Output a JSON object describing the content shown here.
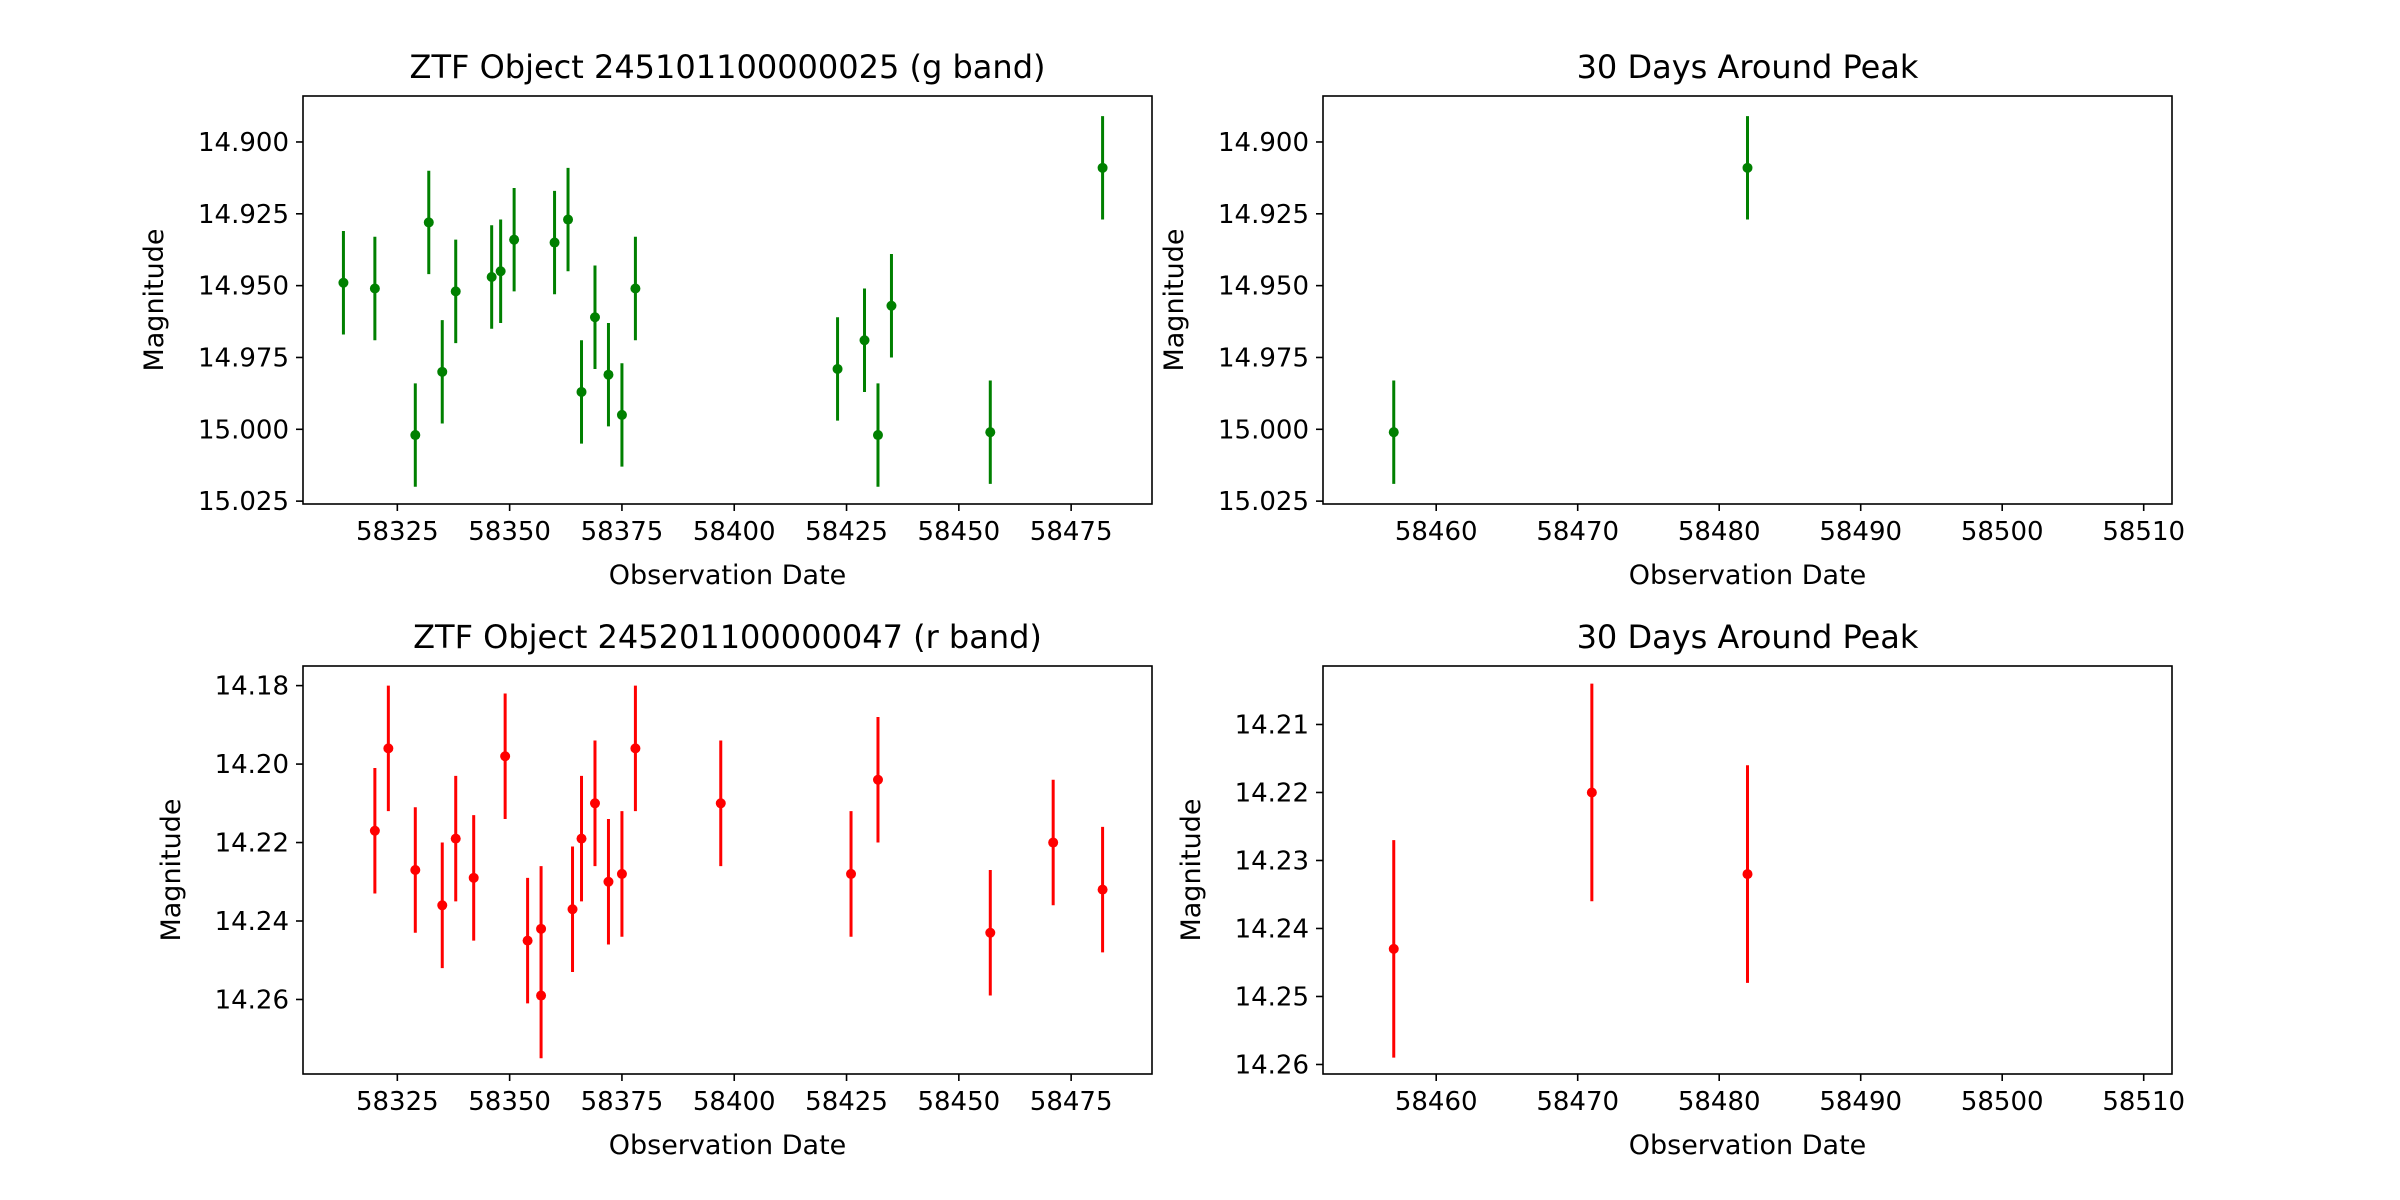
{
  "chart_data": [
    {
      "type": "scatter",
      "title": "ZTF Object 245101100000025 (g band)",
      "xlabel": "Observation Date",
      "ylabel": "Magnitude",
      "xlim": [
        58304,
        58493
      ],
      "ylim": [
        15.026,
        14.884
      ],
      "y_inverted": true,
      "xticks": [
        58325,
        58350,
        58375,
        58400,
        58425,
        58450,
        58475
      ],
      "yticks": [
        14.9,
        14.925,
        14.95,
        14.975,
        15.0,
        15.025
      ],
      "ytick_labels": [
        "14.900",
        "14.925",
        "14.950",
        "14.975",
        "15.000",
        "15.025"
      ],
      "color": "#008000",
      "error_bars": true,
      "series": [
        {
          "x": [
            58313,
            58320,
            58329,
            58332,
            58335,
            58338,
            58346,
            58348,
            58351,
            58360,
            58363,
            58366,
            58369,
            58372,
            58375,
            58378,
            58423,
            58429,
            58432,
            58435,
            58457,
            58482
          ],
          "y": [
            14.949,
            14.951,
            15.002,
            14.928,
            14.98,
            14.952,
            14.947,
            14.945,
            14.934,
            14.935,
            14.927,
            14.987,
            14.961,
            14.981,
            14.995,
            14.951,
            14.979,
            14.969,
            15.002,
            14.957,
            15.001,
            14.909
          ],
          "yerr": [
            0.018,
            0.018,
            0.018,
            0.018,
            0.018,
            0.018,
            0.018,
            0.018,
            0.018,
            0.018,
            0.018,
            0.018,
            0.018,
            0.018,
            0.018,
            0.018,
            0.018,
            0.018,
            0.018,
            0.018,
            0.018,
            0.018
          ]
        }
      ]
    },
    {
      "type": "scatter",
      "title": "30 Days Around Peak",
      "xlabel": "Observation Date",
      "ylabel": "Magnitude",
      "xlim": [
        58452,
        58512
      ],
      "ylim": [
        15.026,
        14.884
      ],
      "y_inverted": true,
      "xticks": [
        58460,
        58470,
        58480,
        58490,
        58500,
        58510
      ],
      "yticks": [
        14.9,
        14.925,
        14.95,
        14.975,
        15.0,
        15.025
      ],
      "ytick_labels": [
        "14.900",
        "14.925",
        "14.950",
        "14.975",
        "15.000",
        "15.025"
      ],
      "color": "#008000",
      "error_bars": true,
      "series": [
        {
          "x": [
            58457,
            58482
          ],
          "y": [
            15.001,
            14.909
          ],
          "yerr": [
            0.018,
            0.018
          ]
        }
      ]
    },
    {
      "type": "scatter",
      "title": "ZTF Object 245201100000047 (r band)",
      "xlabel": "Observation Date",
      "ylabel": "Magnitude",
      "xlim": [
        58304,
        58493
      ],
      "ylim": [
        14.279,
        14.175
      ],
      "y_inverted": true,
      "xticks": [
        58325,
        58350,
        58375,
        58400,
        58425,
        58450,
        58475
      ],
      "yticks": [
        14.18,
        14.2,
        14.22,
        14.24,
        14.26
      ],
      "ytick_labels": [
        "14.18",
        "14.20",
        "14.22",
        "14.24",
        "14.26"
      ],
      "color": "#ff0000",
      "error_bars": true,
      "series": [
        {
          "x": [
            58320,
            58323,
            58329,
            58335,
            58338,
            58342,
            58349,
            58354,
            58357,
            58357,
            58364,
            58366,
            58369,
            58372,
            58375,
            58378,
            58397,
            58426,
            58432,
            58457,
            58471,
            58482
          ],
          "y": [
            14.217,
            14.196,
            14.227,
            14.236,
            14.219,
            14.229,
            14.198,
            14.245,
            14.242,
            14.259,
            14.237,
            14.219,
            14.21,
            14.23,
            14.228,
            14.196,
            14.21,
            14.228,
            14.204,
            14.243,
            14.22,
            14.232
          ],
          "yerr": [
            0.016,
            0.016,
            0.016,
            0.016,
            0.016,
            0.016,
            0.016,
            0.016,
            0.016,
            0.016,
            0.016,
            0.016,
            0.016,
            0.016,
            0.016,
            0.016,
            0.016,
            0.016,
            0.016,
            0.016,
            0.016,
            0.016
          ]
        }
      ]
    },
    {
      "type": "scatter",
      "title": "30 Days Around Peak",
      "xlabel": "Observation Date",
      "ylabel": "Magnitude",
      "xlim": [
        58452,
        58512
      ],
      "ylim": [
        14.2614,
        14.2014
      ],
      "y_inverted": true,
      "xticks": [
        58460,
        58470,
        58480,
        58490,
        58500,
        58510
      ],
      "yticks": [
        14.21,
        14.22,
        14.23,
        14.24,
        14.25,
        14.26
      ],
      "ytick_labels": [
        "14.21",
        "14.22",
        "14.23",
        "14.24",
        "14.25",
        "14.26"
      ],
      "color": "#ff0000",
      "error_bars": true,
      "series": [
        {
          "x": [
            58457,
            58471,
            58482
          ],
          "y": [
            14.243,
            14.22,
            14.232
          ],
          "yerr": [
            0.016,
            0.016,
            0.016
          ]
        }
      ]
    }
  ]
}
